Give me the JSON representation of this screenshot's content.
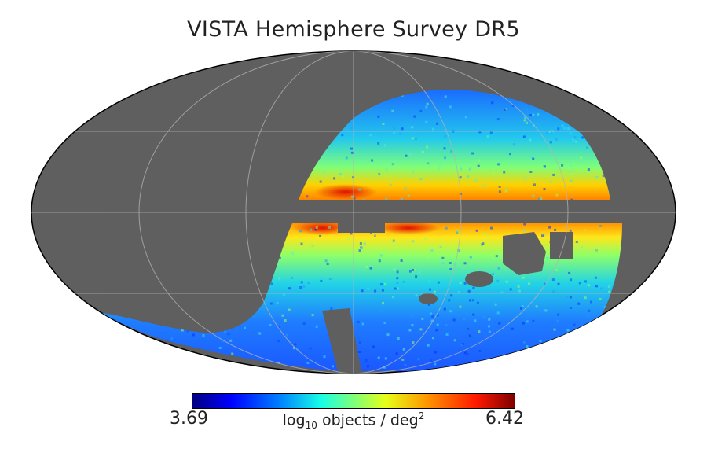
{
  "map": {
    "title": "VISTA Hemisphere Survey DR5",
    "projection": "mollweide",
    "background_color": "#5f5f5f",
    "graticule_color": "#aaaaaa",
    "colormap": "jet"
  },
  "colorbar": {
    "min_label": "3.69",
    "max_label": "6.42",
    "label_prefix": "log",
    "label_subscript": "10",
    "label_middle": " objects / deg",
    "label_superscript": "2"
  }
}
